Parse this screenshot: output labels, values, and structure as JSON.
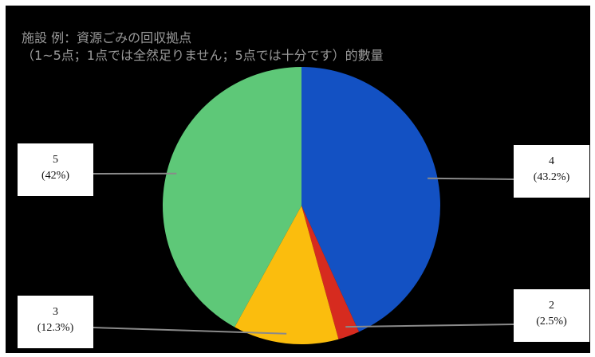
{
  "chart_data": {
    "type": "pie",
    "title_lines": [
      "施設 例：資源ごみの回収拠点",
      "（1~5点；1点では全然足りません；5点では十分です）的數量"
    ],
    "slices": [
      {
        "category": "4",
        "value": 43.2,
        "percent_label": "(43.2%)",
        "color": "#1351c3"
      },
      {
        "category": "2",
        "value": 2.5,
        "percent_label": "(2.5%)",
        "color": "#d62b1f"
      },
      {
        "category": "3",
        "value": 12.3,
        "percent_label": "(12.3%)",
        "color": "#fbbd0d"
      },
      {
        "category": "5",
        "value": 42,
        "percent_label": "(42%)",
        "color": "#5ec878"
      }
    ],
    "start_angle_deg": 0,
    "direction": "clockwise"
  }
}
